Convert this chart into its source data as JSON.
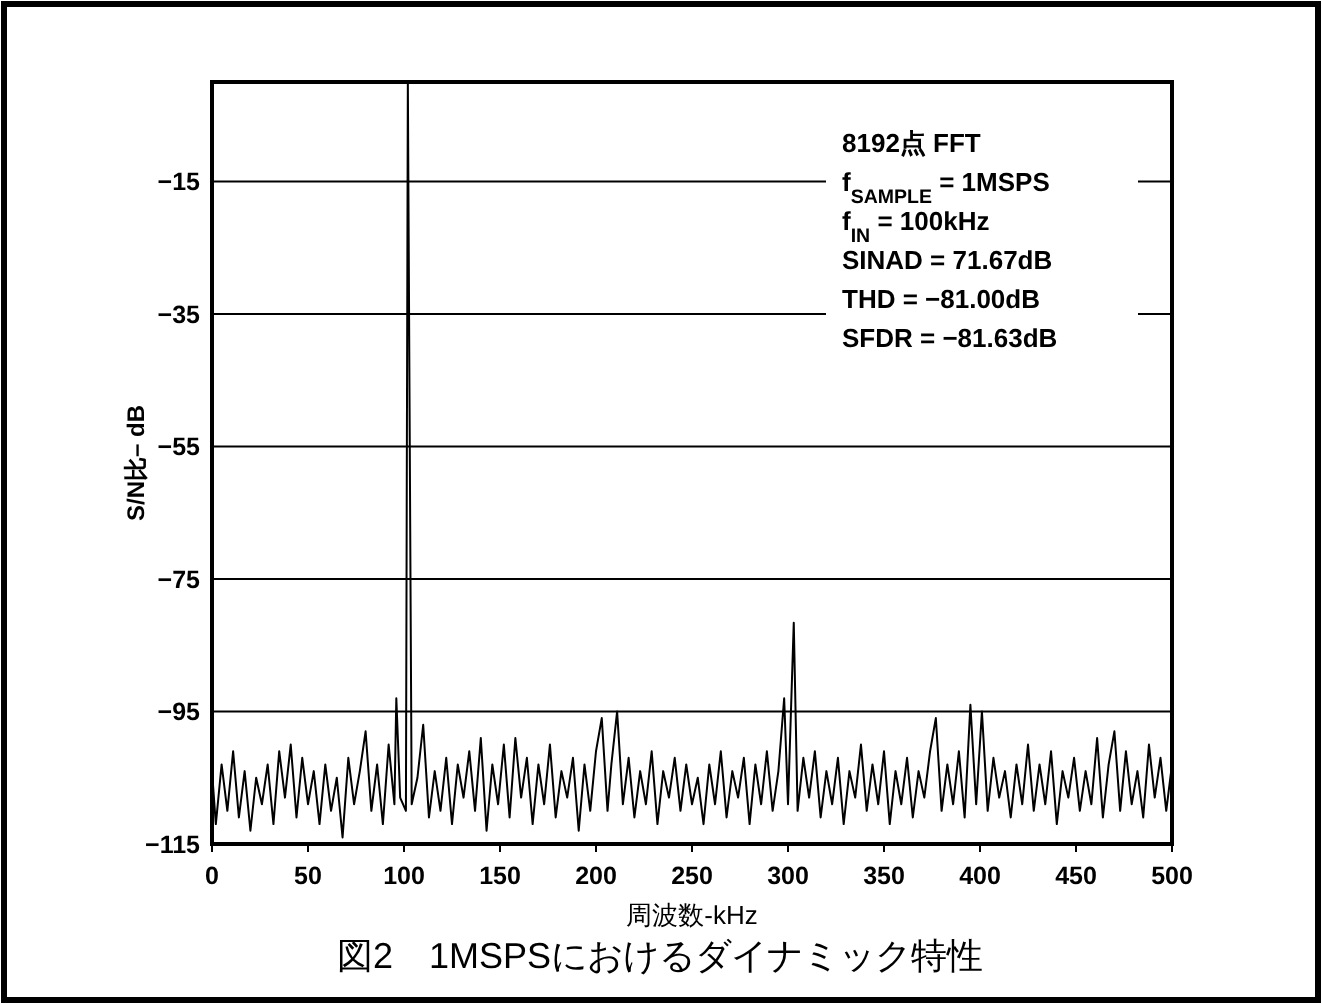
{
  "chart_data": {
    "type": "line",
    "xlabel": "周波数-kHz",
    "ylabel": "S/N比– dB",
    "annotations": [
      "8192点 FFT",
      "f$_{SAMPLE}$ = 1MSPS",
      "f$_{IN}$ = 100kHz",
      "SINAD = 71.67dB",
      "THD = −81.00dB",
      "SFDR = −81.63dB",
      "図2　1MSPSにおけるダイナミック特性"
    ],
    "xlim": [
      0,
      500
    ],
    "xticks": [
      0,
      50,
      100,
      150,
      200,
      250,
      300,
      350,
      400,
      450,
      500
    ],
    "ylim": [
      -115,
      0
    ],
    "yticks": [
      -115,
      -95,
      -75,
      -55,
      -35,
      -15
    ],
    "grid": "y",
    "marker": "none",
    "line_style": "solid",
    "series": [
      {
        "color": "#000000",
        "x": [
          0,
          2,
          5,
          8,
          11,
          14,
          17,
          20,
          23,
          26,
          29,
          32,
          35,
          38,
          41,
          44,
          47,
          50,
          53,
          56,
          59,
          62,
          65,
          68,
          71,
          74,
          77,
          80,
          83,
          86,
          89,
          92,
          95,
          96,
          98,
          101,
          102,
          104,
          107,
          110,
          113,
          116,
          119,
          122,
          125,
          128,
          131,
          134,
          137,
          140,
          143,
          146,
          149,
          152,
          155,
          158,
          161,
          164,
          167,
          170,
          173,
          176,
          179,
          182,
          185,
          188,
          191,
          194,
          197,
          200,
          203,
          206,
          208,
          211,
          214,
          217,
          220,
          223,
          226,
          229,
          232,
          235,
          238,
          241,
          244,
          247,
          250,
          253,
          256,
          259,
          262,
          265,
          268,
          271,
          274,
          277,
          280,
          283,
          286,
          289,
          292,
          295,
          298,
          300,
          303,
          305,
          308,
          311,
          314,
          317,
          320,
          323,
          326,
          329,
          332,
          335,
          338,
          341,
          344,
          347,
          350,
          353,
          356,
          359,
          362,
          365,
          368,
          371,
          374,
          377,
          380,
          383,
          386,
          389,
          392,
          395,
          398,
          401,
          404,
          407,
          410,
          413,
          416,
          419,
          422,
          425,
          428,
          431,
          434,
          437,
          440,
          443,
          446,
          449,
          452,
          455,
          458,
          461,
          464,
          467,
          470,
          473,
          476,
          479,
          482,
          485,
          488,
          491,
          494,
          497,
          500
        ],
        "values": [
          -104,
          -112,
          -103,
          -110,
          -101,
          -111,
          -104,
          -113,
          -105,
          -109,
          -103,
          -112,
          -101,
          -108,
          -100,
          -111,
          -102,
          -109,
          -104,
          -112,
          -103,
          -110,
          -105,
          -114,
          -102,
          -109,
          -104,
          -98,
          -110,
          -103,
          -112,
          -100,
          -109,
          -93,
          -108,
          -110,
          0,
          -109,
          -105,
          -97,
          -111,
          -104,
          -110,
          -102,
          -112,
          -103,
          -108,
          -101,
          -110,
          -99,
          -113,
          -103,
          -109,
          -100,
          -111,
          -99,
          -108,
          -102,
          -112,
          -103,
          -109,
          -100,
          -111,
          -104,
          -108,
          -102,
          -113,
          -103,
          -110,
          -101,
          -96,
          -110,
          -103,
          -95,
          -109,
          -102,
          -111,
          -104,
          -109,
          -101,
          -112,
          -104,
          -108,
          -102,
          -110,
          -103,
          -109,
          -105,
          -112,
          -103,
          -109,
          -101,
          -111,
          -104,
          -108,
          -102,
          -112,
          -103,
          -109,
          -101,
          -110,
          -104,
          -93,
          -109,
          -81.6,
          -110,
          -102,
          -108,
          -101,
          -111,
          -104,
          -109,
          -102,
          -112,
          -104,
          -108,
          -100,
          -110,
          -103,
          -109,
          -101,
          -112,
          -104,
          -109,
          -102,
          -111,
          -104,
          -108,
          -101,
          -96,
          -110,
          -103,
          -109,
          -101,
          -111,
          -94,
          -109,
          -95,
          -110,
          -102,
          -108,
          -104,
          -111,
          -103,
          -109,
          -100,
          -110,
          -103,
          -109,
          -101,
          -112,
          -104,
          -108,
          -102,
          -110,
          -104,
          -109,
          -99,
          -111,
          -103,
          -98,
          -110,
          -101,
          -109,
          -104,
          -111,
          -100,
          -108,
          -102,
          -110,
          -103
        ]
      }
    ]
  }
}
